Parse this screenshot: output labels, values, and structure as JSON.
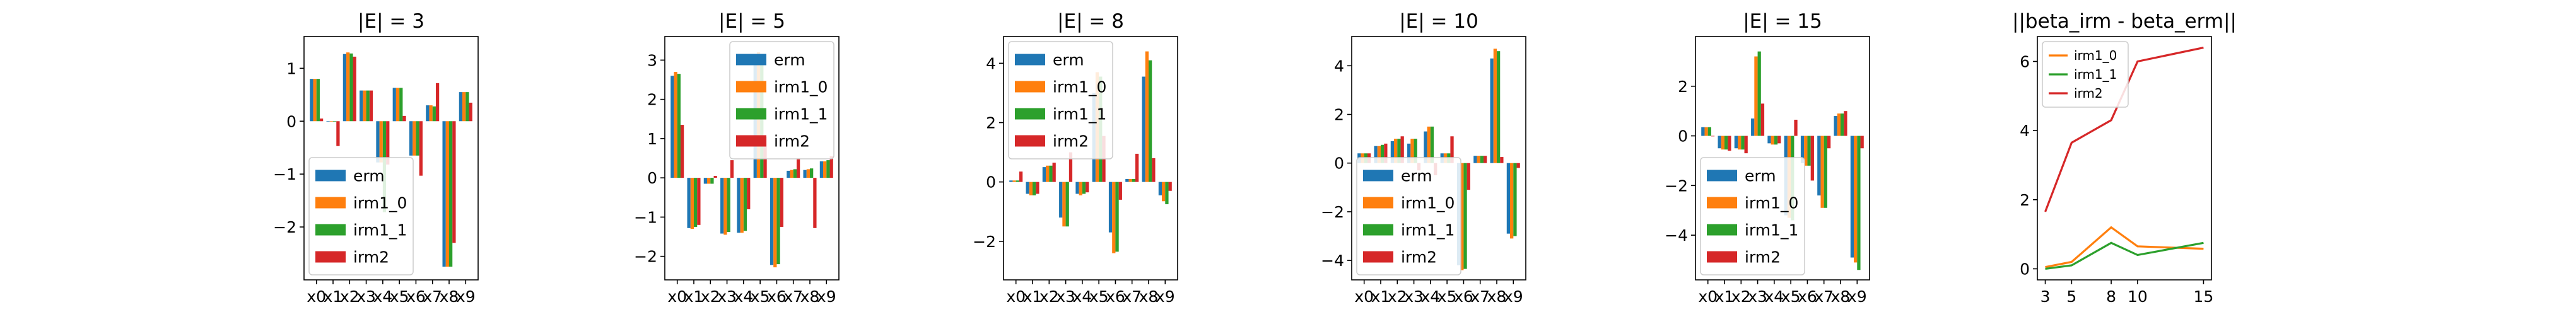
{
  "colors": {
    "erm": "#1f77b4",
    "irm1_0": "#ff7f0e",
    "irm1_1": "#2ca02c",
    "irm2": "#d62728"
  },
  "chart_data": [
    {
      "type": "bar",
      "title": "|E| = 3",
      "categories": [
        "x0",
        "x1",
        "x2",
        "x3",
        "x4",
        "x5",
        "x6",
        "x7",
        "x8",
        "x9"
      ],
      "ylim": [
        -3.0,
        1.6
      ],
      "yticks": [
        -2,
        -1,
        0,
        1
      ],
      "ytick_labels": [
        "−2",
        "−1",
        "0",
        "1"
      ],
      "legend": "lower-left",
      "series": [
        {
          "name": "erm",
          "values": [
            0.8,
            0.0,
            1.27,
            0.58,
            -0.78,
            0.63,
            -0.65,
            0.3,
            -2.75,
            0.55
          ]
        },
        {
          "name": "irm1_0",
          "values": [
            0.8,
            -0.01,
            1.3,
            0.58,
            -0.78,
            0.63,
            -0.65,
            0.3,
            -2.75,
            0.55
          ]
        },
        {
          "name": "irm1_1",
          "values": [
            0.8,
            -0.01,
            1.28,
            0.58,
            -1.72,
            0.63,
            -0.65,
            0.28,
            -2.75,
            0.55
          ]
        },
        {
          "name": "irm2",
          "values": [
            0.05,
            -0.47,
            1.22,
            0.58,
            -0.82,
            0.1,
            -1.03,
            0.72,
            -2.3,
            0.35
          ]
        }
      ]
    },
    {
      "type": "bar",
      "title": "|E| = 5",
      "categories": [
        "x0",
        "x1",
        "x2",
        "x3",
        "x4",
        "x5",
        "x6",
        "x7",
        "x8",
        "x9"
      ],
      "ylim": [
        -2.6,
        3.6
      ],
      "yticks": [
        -2,
        -1,
        0,
        1,
        2,
        3
      ],
      "ytick_labels": [
        "−2",
        "−1",
        "0",
        "1",
        "2",
        "3"
      ],
      "legend": "upper-right",
      "series": [
        {
          "name": "erm",
          "values": [
            2.6,
            -1.28,
            -0.15,
            -1.42,
            -1.4,
            3.0,
            -2.22,
            0.18,
            0.2,
            0.42
          ]
        },
        {
          "name": "irm1_0",
          "values": [
            2.7,
            -1.3,
            -0.15,
            -1.45,
            -1.4,
            3.2,
            -2.28,
            0.2,
            0.22,
            0.42
          ]
        },
        {
          "name": "irm1_1",
          "values": [
            2.65,
            -1.25,
            -0.15,
            -1.38,
            -1.35,
            3.1,
            -2.2,
            0.22,
            0.24,
            0.45
          ]
        },
        {
          "name": "irm2",
          "values": [
            1.35,
            -1.2,
            0.05,
            0.45,
            -0.8,
            1.05,
            -1.25,
            0.5,
            -1.28,
            0.55
          ]
        }
      ]
    },
    {
      "type": "bar",
      "title": "|E| = 8",
      "categories": [
        "x0",
        "x1",
        "x2",
        "x3",
        "x4",
        "x5",
        "x6",
        "x7",
        "x8",
        "x9"
      ],
      "ylim": [
        -3.3,
        4.9
      ],
      "yticks": [
        -2,
        0,
        2,
        4
      ],
      "ytick_labels": [
        "−2",
        "0",
        "2",
        "4"
      ],
      "legend": "upper-left",
      "series": [
        {
          "name": "erm",
          "values": [
            0.05,
            -0.4,
            0.5,
            -1.2,
            -0.4,
            3.0,
            -1.7,
            0.1,
            3.55,
            -0.45
          ]
        },
        {
          "name": "irm1_0",
          "values": [
            0.05,
            -0.45,
            0.55,
            -1.5,
            -0.45,
            3.7,
            -2.4,
            0.1,
            4.4,
            -0.65
          ]
        },
        {
          "name": "irm1_1",
          "values": [
            0.05,
            -0.45,
            0.55,
            -1.5,
            -0.4,
            3.55,
            -2.35,
            0.1,
            4.1,
            -0.75
          ]
        },
        {
          "name": "irm2",
          "values": [
            0.35,
            -0.4,
            0.65,
            1.0,
            -0.35,
            1.55,
            -0.6,
            0.95,
            0.8,
            -0.3
          ]
        }
      ]
    },
    {
      "type": "bar",
      "title": "|E| = 10",
      "categories": [
        "x0",
        "x1",
        "x2",
        "x3",
        "x4",
        "x5",
        "x6",
        "x7",
        "x8",
        "x9"
      ],
      "ylim": [
        -4.8,
        5.2
      ],
      "yticks": [
        -4,
        -2,
        0,
        2,
        4
      ],
      "ytick_labels": [
        "−4",
        "−2",
        "0",
        "2",
        "4"
      ],
      "legend": "lower-left",
      "series": [
        {
          "name": "erm",
          "values": [
            0.4,
            0.7,
            0.9,
            0.8,
            1.3,
            0.4,
            -4.2,
            0.3,
            4.3,
            -2.9
          ]
        },
        {
          "name": "irm1_0",
          "values": [
            0.4,
            0.7,
            1.0,
            1.0,
            1.5,
            0.4,
            -4.4,
            0.3,
            4.7,
            -3.1
          ]
        },
        {
          "name": "irm1_1",
          "values": [
            0.4,
            0.75,
            1.0,
            1.0,
            1.5,
            0.4,
            -4.35,
            0.3,
            4.6,
            -3.0
          ]
        },
        {
          "name": "irm2",
          "values": [
            0.4,
            0.8,
            1.1,
            -0.3,
            -0.5,
            1.1,
            -1.1,
            0.3,
            0.25,
            -0.2
          ]
        }
      ]
    },
    {
      "type": "bar",
      "title": "|E| = 15",
      "categories": [
        "x0",
        "x1",
        "x2",
        "x3",
        "x4",
        "x5",
        "x6",
        "x7",
        "x8",
        "x9"
      ],
      "ylim": [
        -5.8,
        4.0
      ],
      "yticks": [
        -4,
        -2,
        0,
        2
      ],
      "ytick_labels": [
        "−4",
        "−2",
        "0",
        "2"
      ],
      "legend": "lower-left",
      "series": [
        {
          "name": "erm",
          "values": [
            0.35,
            -0.5,
            -0.5,
            0.7,
            -0.3,
            -3.2,
            -1.1,
            -2.4,
            0.8,
            -4.9
          ]
        },
        {
          "name": "irm1_0",
          "values": [
            0.35,
            -0.55,
            -0.55,
            3.2,
            -0.35,
            -3.3,
            -1.2,
            -2.9,
            0.9,
            -5.1
          ]
        },
        {
          "name": "irm1_1",
          "values": [
            0.35,
            -0.55,
            -0.55,
            3.4,
            -0.35,
            -3.4,
            -1.2,
            -2.9,
            0.9,
            -5.4
          ]
        },
        {
          "name": "irm2",
          "values": [
            0.0,
            -0.6,
            -0.7,
            1.3,
            -0.3,
            0.65,
            -1.8,
            -0.5,
            1.0,
            -0.5
          ]
        }
      ]
    },
    {
      "type": "line",
      "title": "||beta_irm - beta_erm||",
      "x": [
        3,
        5,
        8,
        10,
        15
      ],
      "xticks": [
        3,
        5,
        8,
        10,
        15
      ],
      "xtick_labels": [
        "3",
        "5",
        "8",
        "10",
        "15"
      ],
      "xlim": [
        2.4,
        15.6
      ],
      "ylim": [
        -0.32,
        6.72
      ],
      "yticks": [
        0,
        2,
        4,
        6
      ],
      "ytick_labels": [
        "0",
        "2",
        "4",
        "6"
      ],
      "legend": "upper-left",
      "series": [
        {
          "name": "irm1_0",
          "values": [
            0.05,
            0.2,
            1.2,
            0.65,
            0.58
          ]
        },
        {
          "name": "irm1_1",
          "values": [
            0.0,
            0.1,
            0.75,
            0.4,
            0.75
          ]
        },
        {
          "name": "irm2",
          "values": [
            1.65,
            3.65,
            4.3,
            6.0,
            6.4
          ]
        }
      ]
    }
  ]
}
